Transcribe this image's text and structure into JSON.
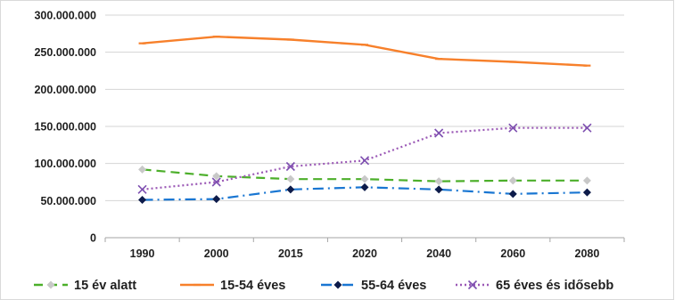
{
  "chart_data": {
    "type": "line",
    "title": "",
    "xlabel": "",
    "ylabel": "",
    "categories": [
      "1990",
      "2000",
      "2015",
      "2020",
      "2040",
      "2060",
      "2080"
    ],
    "ylim": [
      0,
      300000000
    ],
    "yticks": [
      0,
      50000000,
      100000000,
      150000000,
      200000000,
      250000000,
      300000000
    ],
    "ytick_labels": [
      "0",
      "50.000.000",
      "100.000.000",
      "150.000.000",
      "200.000.000",
      "250.000.000",
      "300.000.000"
    ],
    "grid": true,
    "legend_position": "bottom",
    "series": [
      {
        "name": "15 év alatt",
        "color": "#4caf2a",
        "line_style": "dashed",
        "marker": "diamond",
        "marker_color": "#c8c8c8",
        "values": [
          92000000,
          83000000,
          79000000,
          79000000,
          76000000,
          77000000,
          77000000
        ]
      },
      {
        "name": "15-54 éves",
        "color": "#f7802b",
        "line_style": "solid",
        "marker": "dash",
        "marker_color": "#f7802b",
        "values": [
          262000000,
          271000000,
          267000000,
          260000000,
          241000000,
          237000000,
          232000000
        ]
      },
      {
        "name": "55-64 éves",
        "color": "#1976d2",
        "line_style": "dash-dot",
        "marker": "diamond",
        "marker_color": "#0d1b4a",
        "values": [
          51000000,
          52000000,
          65000000,
          68000000,
          65000000,
          59000000,
          61000000
        ]
      },
      {
        "name": "65 éves és idősebb",
        "color": "#9b59b6",
        "line_style": "dotted",
        "marker": "x",
        "marker_color": "#7d4fb0",
        "values": [
          65000000,
          75000000,
          96000000,
          104000000,
          141000000,
          148000000,
          148000000
        ]
      }
    ]
  }
}
